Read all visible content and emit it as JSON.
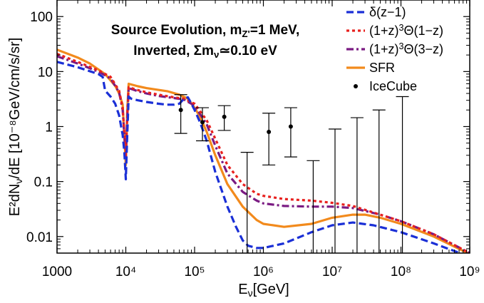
{
  "chart_data": {
    "type": "line",
    "title": "Source Evolution, m_{Z'}=1 MeV,",
    "subtitle": "Inverted, Σm_ν≃0.10 eV",
    "xlabel": "E_ν[GeV]",
    "ylabel": "E²dN_ν/dE [10⁻⁸GeV/cm/s/sr]",
    "x_scale": "log",
    "y_scale": "log",
    "xlim": [
      1000,
      1000000000
    ],
    "ylim": [
      0.005,
      200
    ],
    "x_ticks": [
      {
        "value": 1000,
        "label": "1000"
      },
      {
        "value": 10000,
        "label": "10⁴"
      },
      {
        "value": 100000,
        "label": "10⁵"
      },
      {
        "value": 1000000,
        "label": "10⁶"
      },
      {
        "value": 10000000,
        "label": "10⁷"
      },
      {
        "value": 100000000,
        "label": "10⁸"
      },
      {
        "value": 1000000000,
        "label": "10⁹"
      }
    ],
    "y_ticks": [
      {
        "value": 0.01,
        "label": "0.01"
      },
      {
        "value": 0.1,
        "label": "0.1"
      },
      {
        "value": 1,
        "label": "1"
      },
      {
        "value": 10,
        "label": "10"
      },
      {
        "value": 100,
        "label": "100"
      }
    ],
    "legend_position": "top-right",
    "series": [
      {
        "name": "δ(z−1)",
        "color": "#1a2fd6",
        "style": "dashed",
        "points": [
          [
            1000,
            15
          ],
          [
            2000,
            12
          ],
          [
            4000,
            9
          ],
          [
            4600,
            8
          ],
          [
            5000,
            4.5
          ],
          [
            6000,
            3.5
          ],
          [
            7000,
            2.6
          ],
          [
            8000,
            1.6
          ],
          [
            9000,
            0.7
          ],
          [
            9500,
            0.35
          ],
          [
            10000,
            0.11
          ],
          [
            10500,
            0.7
          ],
          [
            11000,
            3.5
          ],
          [
            12000,
            3.2
          ],
          [
            15000,
            3.0
          ],
          [
            20000,
            2.8
          ],
          [
            30000,
            2.6
          ],
          [
            40000,
            2.5
          ],
          [
            50000,
            2.5
          ],
          [
            60000,
            2.6
          ],
          [
            70000,
            3.2
          ],
          [
            80000,
            3.4
          ],
          [
            90000,
            2.6
          ],
          [
            100000,
            2.0
          ],
          [
            120000,
            1.2
          ],
          [
            150000,
            0.55
          ],
          [
            200000,
            0.15
          ],
          [
            300000,
            0.035
          ],
          [
            400000,
            0.015
          ],
          [
            500000,
            0.0085
          ],
          [
            600000,
            0.0068
          ],
          [
            800000,
            0.0062
          ],
          [
            1000000,
            0.0062
          ],
          [
            2000000,
            0.0075
          ],
          [
            5000000,
            0.012
          ],
          [
            10000000,
            0.016
          ],
          [
            20000000,
            0.018
          ],
          [
            40000000,
            0.016
          ],
          [
            100000000,
            0.012
          ],
          [
            300000000,
            0.0075
          ],
          [
            1000000000,
            0.0043
          ]
        ]
      },
      {
        "name": "(1+z)³Θ(1−z)",
        "color": "#e8201e",
        "style": "dotted",
        "points": [
          [
            1000,
            21
          ],
          [
            2000,
            15
          ],
          [
            4000,
            10.5
          ],
          [
            6000,
            8
          ],
          [
            8000,
            4.5
          ],
          [
            9000,
            2.2
          ],
          [
            10000,
            0.3
          ],
          [
            10500,
            1.5
          ],
          [
            11000,
            5.2
          ],
          [
            15000,
            4.6
          ],
          [
            20000,
            4.2
          ],
          [
            30000,
            3.8
          ],
          [
            50000,
            3.4
          ],
          [
            70000,
            3.2
          ],
          [
            100000,
            2.6
          ],
          [
            150000,
            1.3
          ],
          [
            200000,
            0.6
          ],
          [
            300000,
            0.2
          ],
          [
            500000,
            0.09
          ],
          [
            800000,
            0.06
          ],
          [
            1000000,
            0.055
          ],
          [
            2000000,
            0.048
          ],
          [
            5000000,
            0.045
          ],
          [
            10000000,
            0.041
          ],
          [
            20000000,
            0.036
          ],
          [
            50000000,
            0.025
          ],
          [
            100000000,
            0.019
          ],
          [
            300000000,
            0.011
          ],
          [
            1000000000,
            0.005
          ]
        ]
      },
      {
        "name": "(1+z)³Θ(3−z)",
        "color": "#7a1a82",
        "style": "dashdot",
        "points": [
          [
            1000,
            19
          ],
          [
            2000,
            14
          ],
          [
            4000,
            10
          ],
          [
            6000,
            7.5
          ],
          [
            8000,
            4.2
          ],
          [
            9000,
            2
          ],
          [
            10000,
            0.28
          ],
          [
            10500,
            1.4
          ],
          [
            11000,
            5
          ],
          [
            15000,
            4.4
          ],
          [
            20000,
            4
          ],
          [
            30000,
            3.6
          ],
          [
            50000,
            3.3
          ],
          [
            70000,
            3.1
          ],
          [
            100000,
            2.4
          ],
          [
            150000,
            1.1
          ],
          [
            200000,
            0.45
          ],
          [
            300000,
            0.14
          ],
          [
            500000,
            0.065
          ],
          [
            800000,
            0.045
          ],
          [
            1000000,
            0.04
          ],
          [
            2000000,
            0.036
          ],
          [
            5000000,
            0.035
          ],
          [
            10000000,
            0.035
          ],
          [
            20000000,
            0.033
          ],
          [
            50000000,
            0.025
          ],
          [
            100000000,
            0.019
          ],
          [
            300000000,
            0.011
          ],
          [
            1000000000,
            0.005
          ]
        ]
      },
      {
        "name": "SFR",
        "color": "#f28a1c",
        "style": "solid",
        "points": [
          [
            1000,
            25
          ],
          [
            2000,
            18
          ],
          [
            3000,
            14
          ],
          [
            5000,
            9
          ],
          [
            7000,
            5.5
          ],
          [
            8000,
            4
          ],
          [
            9000,
            2.5
          ],
          [
            10000,
            0.2
          ],
          [
            10500,
            2
          ],
          [
            11000,
            6
          ],
          [
            15000,
            5.4
          ],
          [
            20000,
            5
          ],
          [
            40000,
            4.4
          ],
          [
            60000,
            3.8
          ],
          [
            80000,
            3.2
          ],
          [
            100000,
            2.2
          ],
          [
            120000,
            1.5
          ],
          [
            150000,
            0.8
          ],
          [
            200000,
            0.3
          ],
          [
            300000,
            0.09
          ],
          [
            500000,
            0.035
          ],
          [
            800000,
            0.02
          ],
          [
            1000000,
            0.017
          ],
          [
            2000000,
            0.015
          ],
          [
            5000000,
            0.017
          ],
          [
            10000000,
            0.022
          ],
          [
            20000000,
            0.025
          ],
          [
            30000000,
            0.025
          ],
          [
            50000000,
            0.022
          ],
          [
            100000000,
            0.017
          ],
          [
            300000000,
            0.01
          ],
          [
            1000000000,
            0.0048
          ]
        ]
      }
    ],
    "icecube": {
      "name": "IceCube",
      "color": "#000000",
      "points": [
        {
          "x": 63000,
          "y": 2.0,
          "lo": 0.75,
          "hi": 3.8
        },
        {
          "x": 130000,
          "y": 1.2,
          "lo": 0.55,
          "hi": 2.2
        },
        {
          "x": 270000,
          "y": 1.5,
          "lo": 0.85,
          "hi": 2.4
        },
        {
          "x": 1200000,
          "y": 0.8,
          "lo": 0.2,
          "hi": 1.75
        },
        {
          "x": 2500000,
          "y": 1.0,
          "lo": 0.28,
          "hi": 2.2
        },
        {
          "x": 580000,
          "y": null,
          "lo": 0.005,
          "hi": 0.34
        },
        {
          "x": 5300000,
          "y": null,
          "lo": 0.005,
          "hi": 0.24
        },
        {
          "x": 11000000,
          "y": null,
          "lo": 0.005,
          "hi": 0.9
        },
        {
          "x": 23000000,
          "y": null,
          "lo": 0.005,
          "hi": 1.45
        },
        {
          "x": 48000000,
          "y": null,
          "lo": 0.005,
          "hi": 2.0
        },
        {
          "x": 105000000,
          "y": null,
          "lo": 0.005,
          "hi": 3.5
        }
      ]
    }
  }
}
